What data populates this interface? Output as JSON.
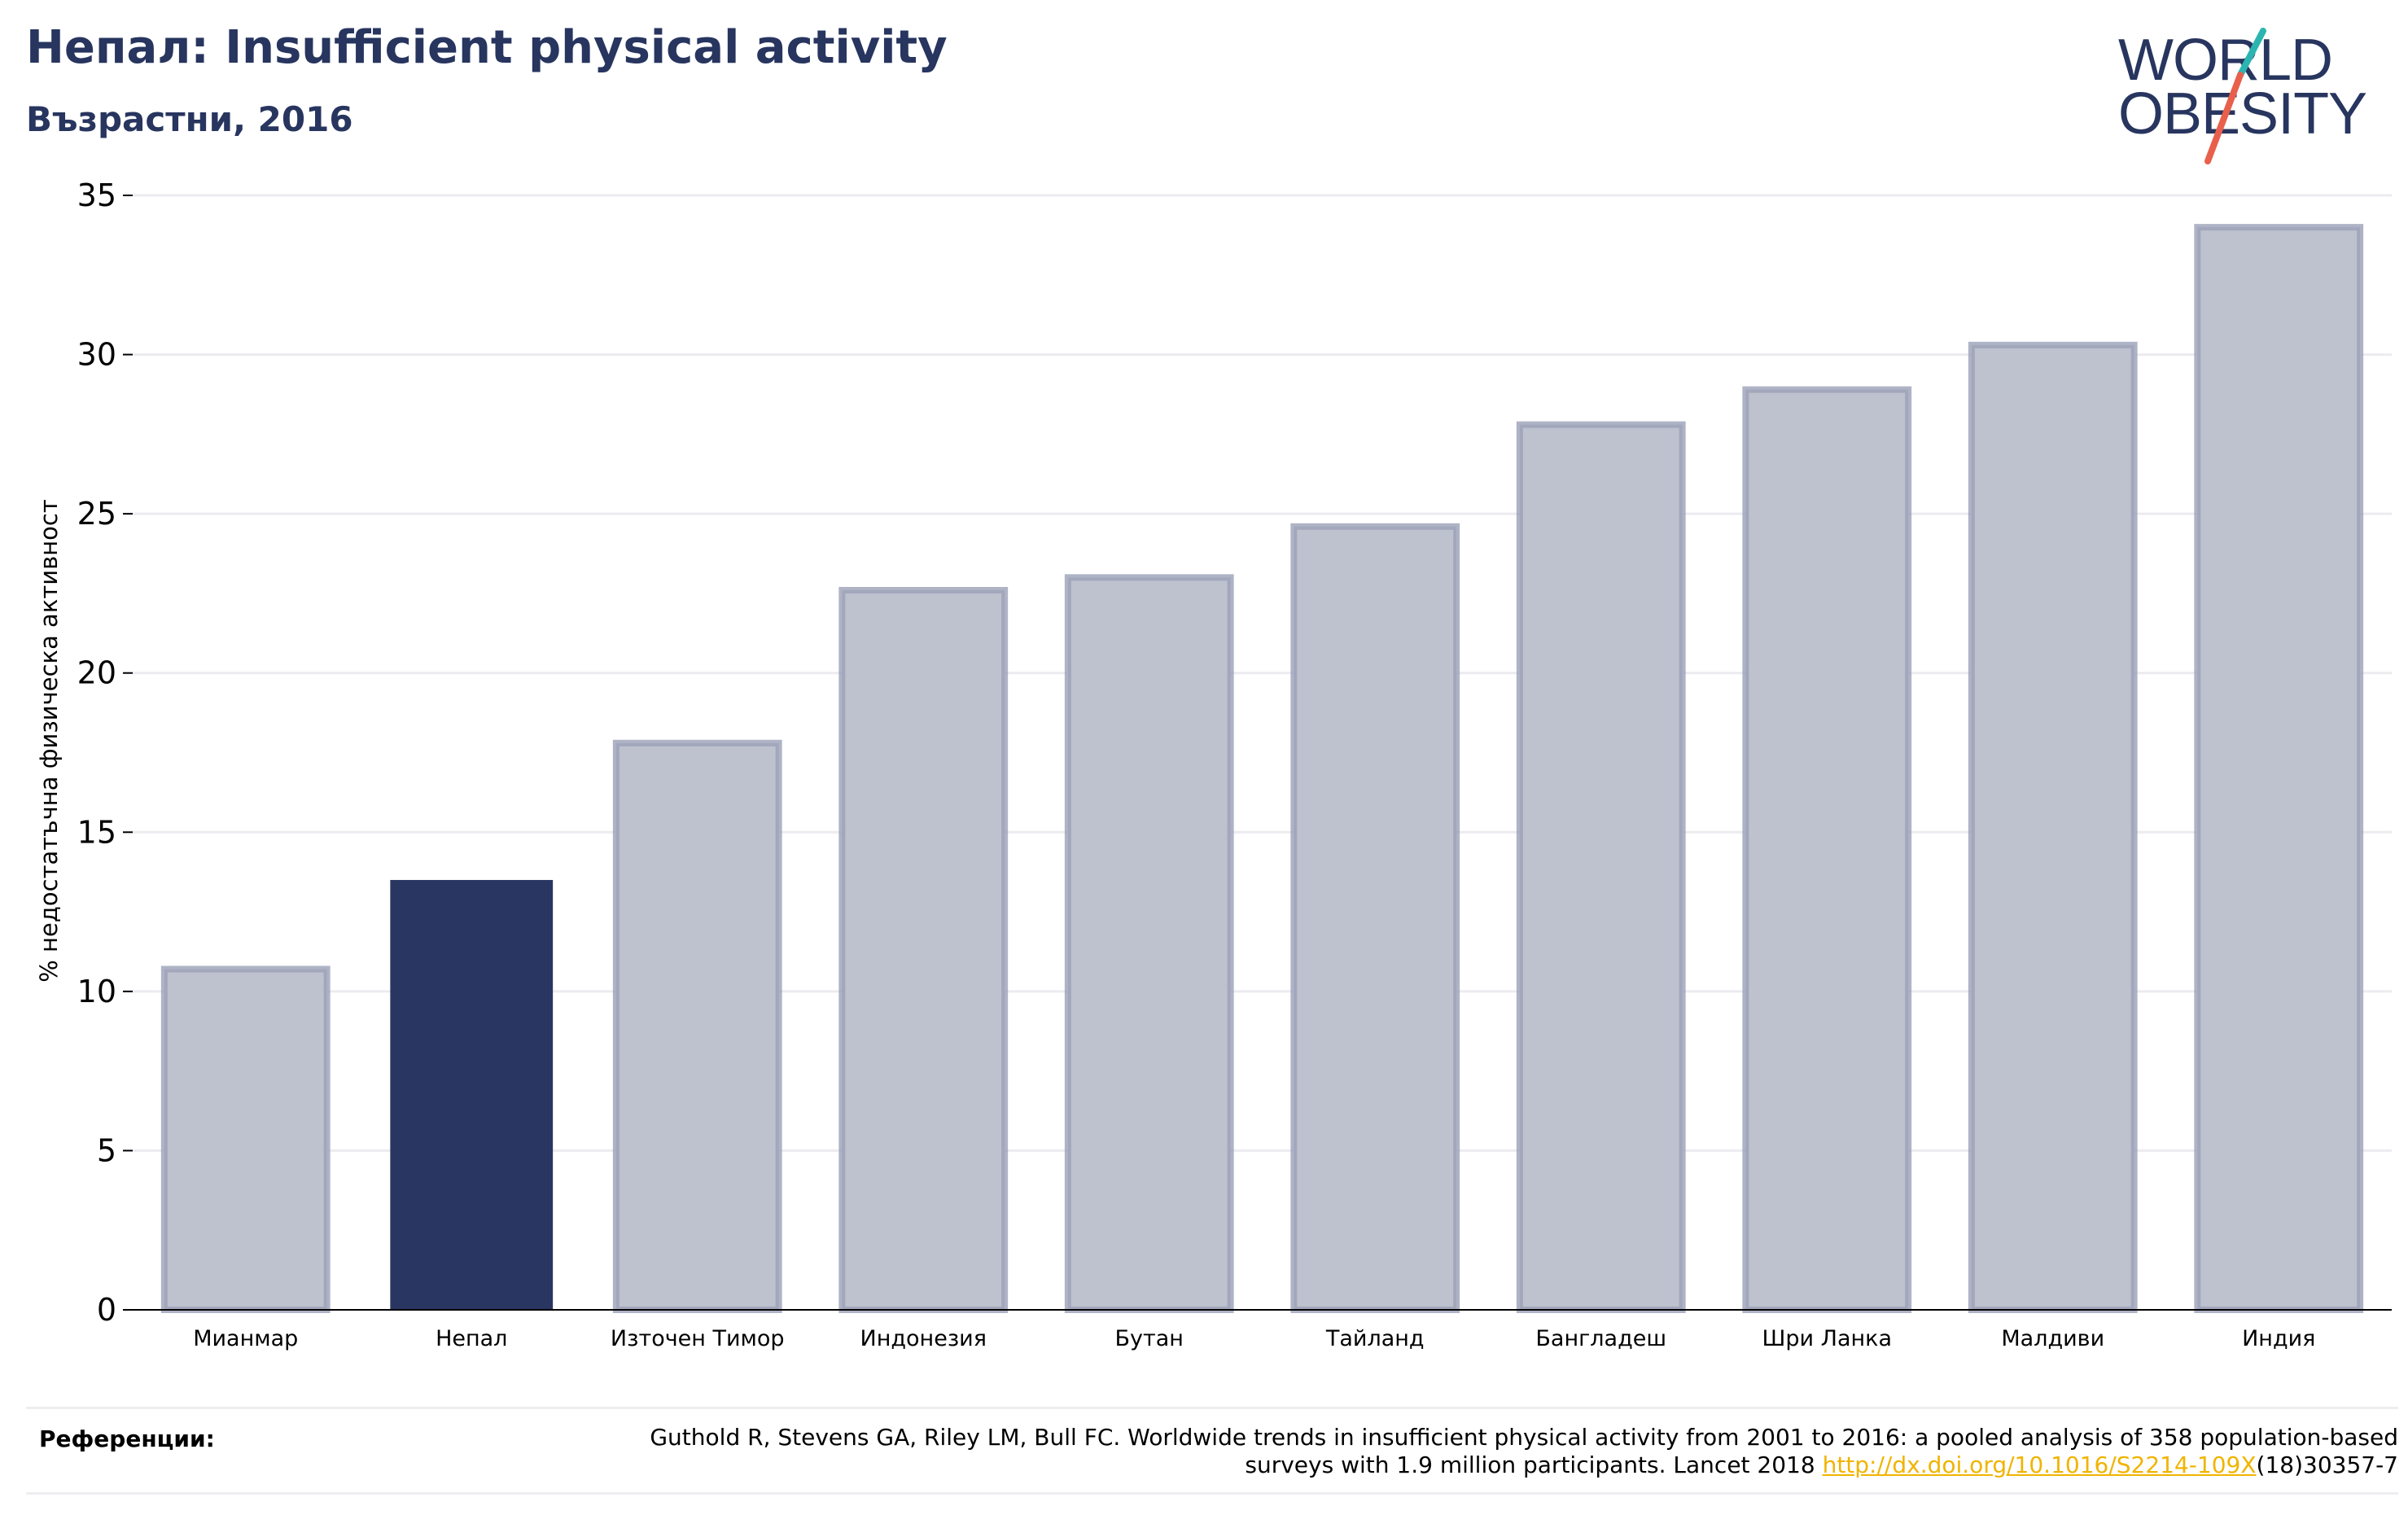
{
  "header": {
    "title": "Непал: Insufficient physical activity",
    "subtitle": "Възрастни, 2016"
  },
  "logo": {
    "line1": "WORLD",
    "line2": "OBESITY",
    "colors": {
      "text": "#27355f",
      "slash_top": "#2cb5b0",
      "slash_bottom": "#e8604c"
    }
  },
  "colors": {
    "highlight_bar": "#2a3662",
    "other_bar_fill": "#bec1ce",
    "other_bar_stroke": "#9ba0b8",
    "axis_text": "#000000",
    "gridline": "#ebebf0",
    "link": "#f0b400"
  },
  "chart_data": {
    "type": "bar",
    "categories": [
      "Мианмар",
      "Непал",
      "Източен Тимор",
      "Индонезия",
      "Бутан",
      "Тайланд",
      "Бангладеш",
      "Шри Ланка",
      "Малдиви",
      "Индия"
    ],
    "values": [
      10.7,
      13.5,
      17.8,
      22.6,
      23.0,
      24.6,
      27.8,
      28.9,
      30.3,
      34.0
    ],
    "highlight": "Непал",
    "xlabel": "",
    "ylabel": "% недостатъчна физическа активност",
    "ylim": [
      0,
      35
    ],
    "yticks": [
      0,
      5,
      10,
      15,
      20,
      25,
      30,
      35
    ],
    "grid": true
  },
  "references": {
    "label": "Референции:",
    "text_before": "Guthold R, Stevens GA, Riley LM, Bull FC. Worldwide trends in insufficient physical activity from 2001 to 2016: a pooled analysis of 358 population-based surveys with 1.9 million participants. Lancet 2018 ",
    "link": "http://dx.doi.org/10.1016/S2214-109X",
    "text_after": "(18)30357-7"
  }
}
